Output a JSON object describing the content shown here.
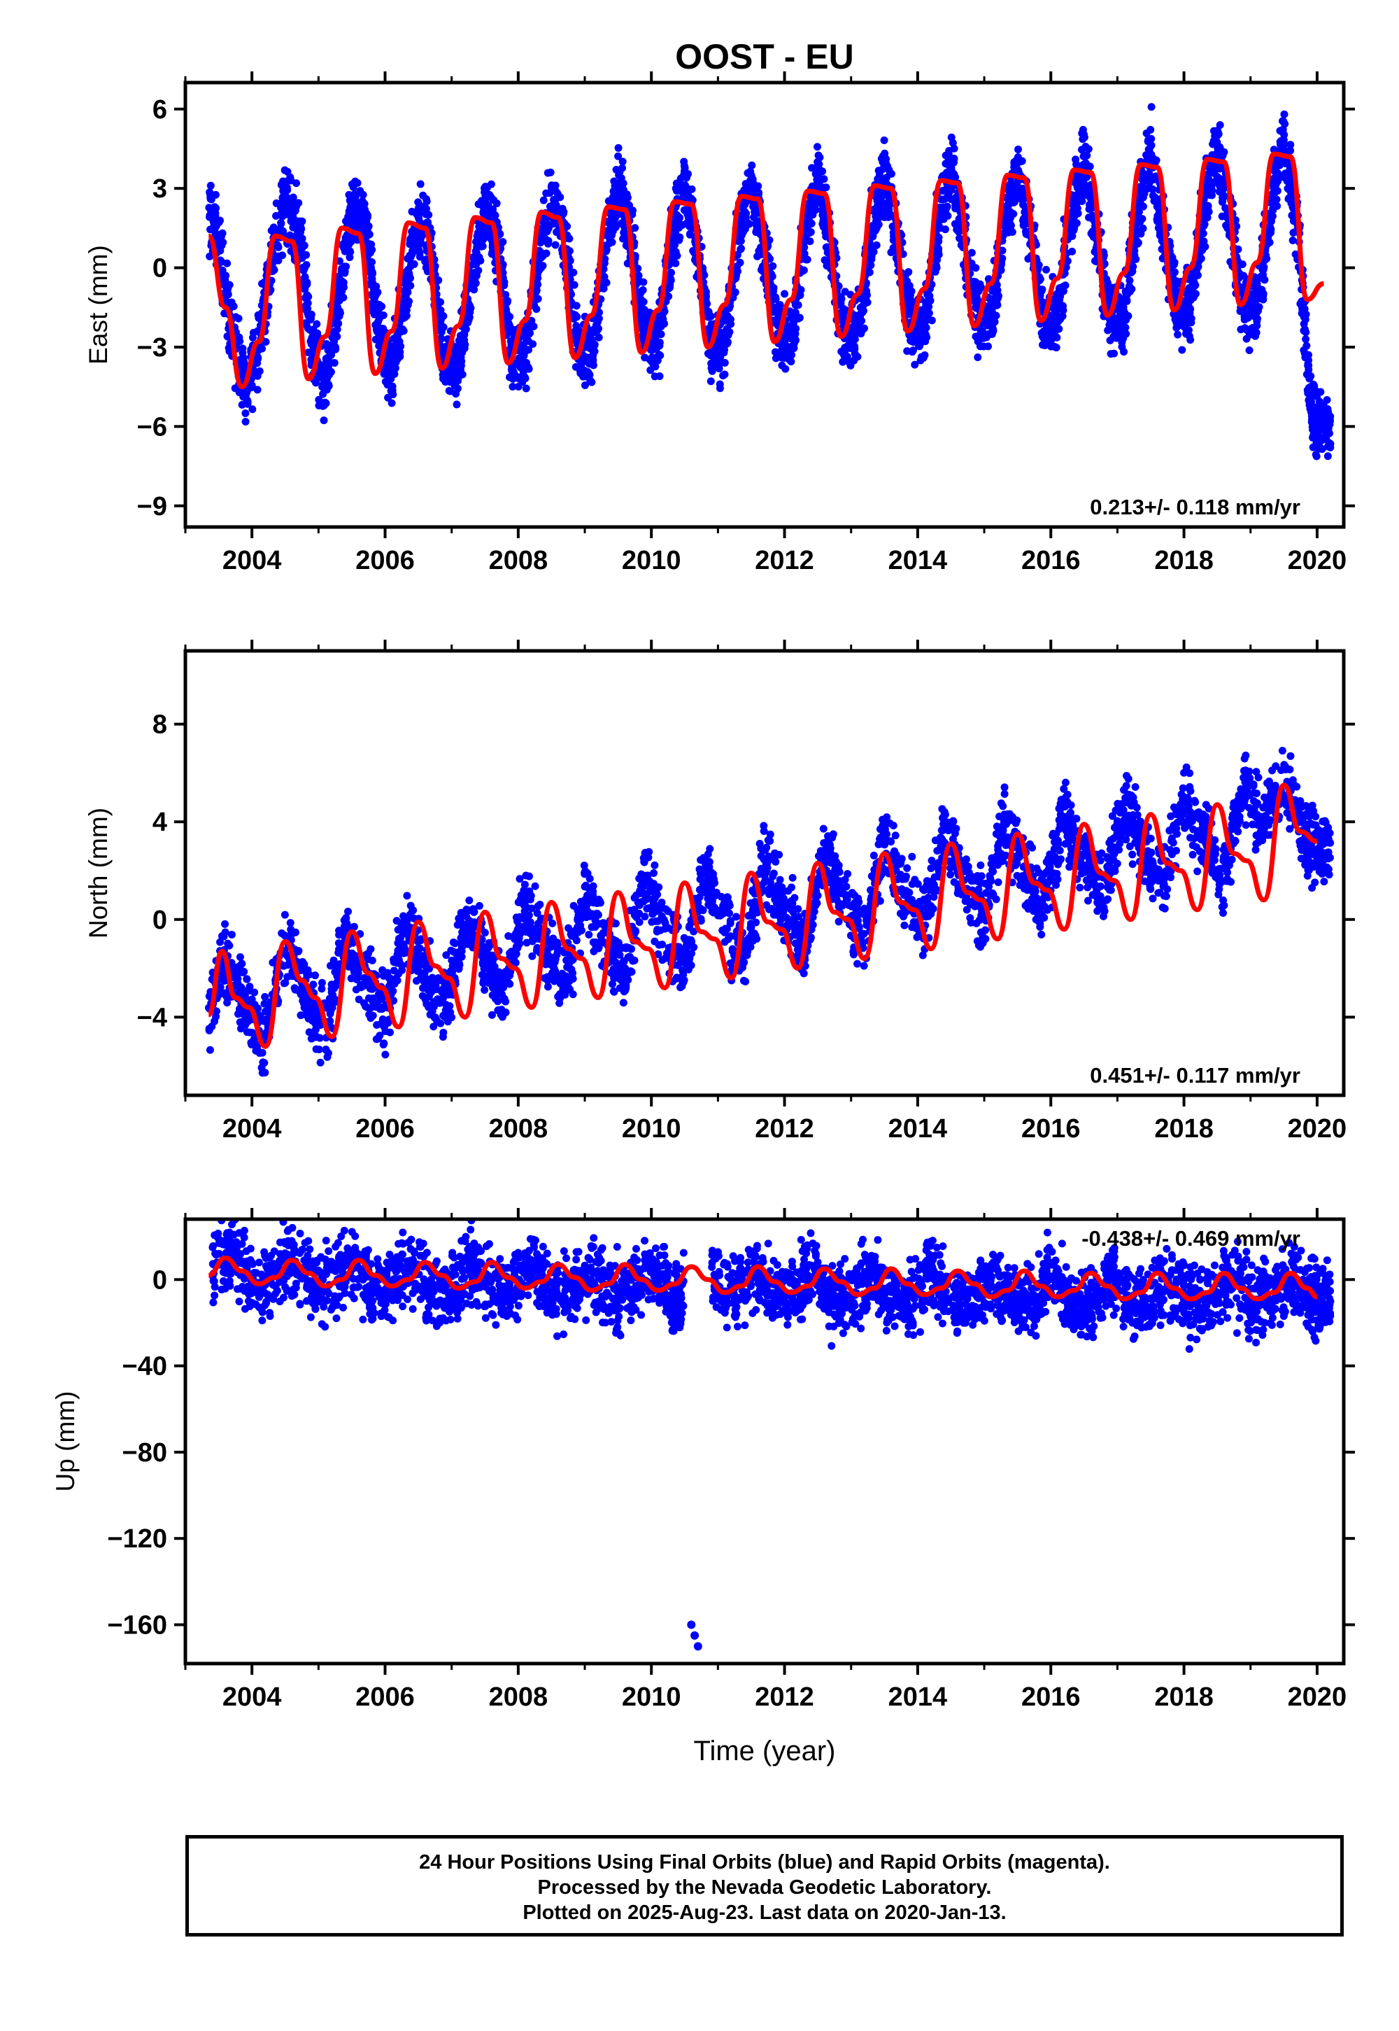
{
  "title": "OOST - EU",
  "xlabel": "Time (year)",
  "colors": {
    "final_orbits": "#0000ff",
    "model": "#ff0000",
    "frame": "#000000"
  },
  "footer": {
    "line1": "24 Hour Positions Using Final Orbits (blue) and Rapid Orbits (magenta).",
    "line2": "Processed by the Nevada Geodetic Laboratory.",
    "line3": "Plotted on 2025-Aug-23. Last data on 2020-Jan-13."
  },
  "chart_data": [
    {
      "type": "scatter",
      "id": "east",
      "ylabel": "East (mm)",
      "xlim": [
        2003.0,
        2020.4
      ],
      "ylim": [
        -9.8,
        7.0
      ],
      "x_ticks": [
        "2004",
        "2006",
        "2008",
        "2010",
        "2012",
        "2014",
        "2016",
        "2018",
        "2020"
      ],
      "y_ticks": [
        "6",
        "3",
        "0",
        "−3",
        "−6",
        "−9"
      ],
      "rate_label": "0.213+/- 0.118 mm/yr",
      "rate_position": "bottom-right",
      "series": [
        {
          "marker": "dots",
          "x": [
            2003.35,
            2003.5,
            2003.7,
            2003.9,
            2004.1,
            2004.3,
            2004.5,
            2004.7,
            2004.9,
            2005.1,
            2005.3,
            2005.5,
            2005.7,
            2005.9,
            2006.1,
            2006.3,
            2006.5,
            2006.7,
            2006.9,
            2007.1,
            2007.3,
            2007.5,
            2007.7,
            2007.9,
            2008.1,
            2008.3,
            2008.5,
            2008.7,
            2008.9,
            2009.1,
            2009.3,
            2009.5,
            2009.7,
            2009.9,
            2010.1,
            2010.3,
            2010.5,
            2010.7,
            2010.9,
            2011.1,
            2011.3,
            2011.5,
            2011.7,
            2011.9,
            2012.1,
            2012.3,
            2012.5,
            2012.7,
            2012.9,
            2013.1,
            2013.3,
            2013.5,
            2013.7,
            2013.9,
            2014.1,
            2014.3,
            2014.5,
            2014.7,
            2014.9,
            2015.1,
            2015.3,
            2015.5,
            2015.7,
            2015.9,
            2016.1,
            2016.3,
            2016.5,
            2016.7,
            2016.9,
            2017.1,
            2017.3,
            2017.5,
            2017.7,
            2017.9,
            2018.1,
            2018.3,
            2018.5,
            2018.7,
            2018.9,
            2019.1,
            2019.3,
            2019.5,
            2019.7,
            2019.9,
            2020.0
          ],
          "y": [
            2.0,
            1.0,
            -2.5,
            -4.5,
            -3.0,
            0.5,
            2.5,
            1.5,
            -3.0,
            -4.5,
            -1.5,
            2.0,
            1.8,
            -2.5,
            -4.0,
            -1.2,
            2.0,
            0.5,
            -3.5,
            -3.8,
            -0.5,
            2.3,
            0.8,
            -3.0,
            -3.5,
            0.0,
            2.8,
            1.0,
            -3.0,
            -3.2,
            0.5,
            3.0,
            1.0,
            -2.5,
            -3.0,
            0.8,
            3.2,
            0.5,
            -3.0,
            -2.8,
            1.0,
            3.2,
            0.6,
            -2.5,
            -2.8,
            0.8,
            3.5,
            0.6,
            -2.6,
            -2.5,
            1.2,
            3.6,
            0.8,
            -2.2,
            -2.3,
            1.4,
            3.8,
            1.0,
            -2.0,
            -2.0,
            1.5,
            3.9,
            1.2,
            -2.0,
            -1.8,
            1.8,
            4.2,
            1.0,
            -1.8,
            -1.8,
            2.0,
            4.5,
            1.3,
            -1.5,
            -1.5,
            2.0,
            4.6,
            1.3,
            -1.4,
            -1.3,
            2.2,
            4.8,
            1.5,
            -5.0,
            -6.0
          ]
        },
        {
          "name": "",
          "line": "model",
          "x": [
            2003.35,
            2003.6,
            2003.85,
            2004.1,
            2004.35,
            2004.6,
            2004.85,
            2005.1,
            2005.35,
            2005.6,
            2005.85,
            2006.1,
            2006.35,
            2006.6,
            2006.85,
            2007.1,
            2007.35,
            2007.6,
            2007.85,
            2008.1,
            2008.35,
            2008.6,
            2008.85,
            2009.1,
            2009.35,
            2009.6,
            2009.85,
            2010.1,
            2010.35,
            2010.6,
            2010.85,
            2011.1,
            2011.35,
            2011.6,
            2011.85,
            2012.1,
            2012.35,
            2012.6,
            2012.85,
            2013.1,
            2013.35,
            2013.6,
            2013.85,
            2014.1,
            2014.35,
            2014.6,
            2014.85,
            2015.1,
            2015.35,
            2015.6,
            2015.85,
            2016.1,
            2016.35,
            2016.6,
            2016.85,
            2017.1,
            2017.35,
            2017.6,
            2017.85,
            2018.1,
            2018.35,
            2018.6,
            2018.85,
            2019.1,
            2019.35,
            2019.6,
            2019.85,
            2020.1
          ],
          "y": [
            1.2,
            -1.5,
            -4.5,
            -2.8,
            1.2,
            1.0,
            -4.2,
            -2.6,
            1.5,
            1.3,
            -4.0,
            -2.4,
            1.7,
            1.5,
            -3.8,
            -2.2,
            1.9,
            1.7,
            -3.6,
            -2.0,
            2.1,
            1.9,
            -3.4,
            -1.8,
            2.3,
            2.2,
            -3.2,
            -1.6,
            2.5,
            2.4,
            -3.0,
            -1.4,
            2.7,
            2.6,
            -2.8,
            -1.2,
            2.9,
            2.8,
            -2.6,
            -1.0,
            3.1,
            3.0,
            -2.4,
            -0.8,
            3.3,
            3.2,
            -2.2,
            -0.6,
            3.5,
            3.4,
            -2.0,
            -0.4,
            3.7,
            3.6,
            -1.8,
            -0.2,
            3.9,
            3.8,
            -1.6,
            0.0,
            4.1,
            4.0,
            -1.4,
            0.2,
            4.3,
            4.2,
            -1.2,
            -0.6
          ]
        }
      ]
    },
    {
      "type": "scatter",
      "id": "north",
      "ylabel": "North (mm)",
      "xlim": [
        2003.0,
        2020.4
      ],
      "ylim": [
        -7.2,
        11.0
      ],
      "x_ticks": [
        "2004",
        "2006",
        "2008",
        "2010",
        "2012",
        "2014",
        "2016",
        "2018",
        "2020"
      ],
      "y_ticks": [
        "8",
        "4",
        "0",
        "−4"
      ],
      "rate_label": "0.451+/- 0.117 mm/yr",
      "rate_position": "bottom-right",
      "series": [
        {
          "marker": "dots",
          "x": [
            2003.35,
            2003.6,
            2003.9,
            2004.2,
            2004.5,
            2004.8,
            2005.1,
            2005.4,
            2005.7,
            2006.0,
            2006.3,
            2006.6,
            2006.9,
            2007.2,
            2007.5,
            2007.8,
            2008.1,
            2008.4,
            2008.7,
            2009.0,
            2009.3,
            2009.6,
            2009.9,
            2010.2,
            2010.5,
            2010.8,
            2011.1,
            2011.4,
            2011.7,
            2012.0,
            2012.3,
            2012.6,
            2012.9,
            2013.2,
            2013.5,
            2013.8,
            2014.1,
            2014.4,
            2014.7,
            2015.0,
            2015.3,
            2015.6,
            2015.9,
            2016.2,
            2016.5,
            2016.8,
            2017.1,
            2017.4,
            2017.7,
            2018.0,
            2018.3,
            2018.6,
            2018.9,
            2019.2,
            2019.5,
            2019.8,
            2020.0
          ],
          "y": [
            -3.8,
            -1.5,
            -3.5,
            -5.0,
            -1.0,
            -2.8,
            -4.5,
            -0.6,
            -2.5,
            -4.0,
            -0.2,
            -2.0,
            -3.6,
            0.3,
            -1.6,
            -3.2,
            0.8,
            -1.2,
            -2.8,
            1.2,
            -0.8,
            -2.4,
            1.6,
            -0.4,
            -2.0,
            2.0,
            0.0,
            -1.5,
            2.4,
            0.4,
            -1.0,
            2.8,
            0.8,
            -0.6,
            3.2,
            1.2,
            -0.2,
            3.6,
            1.6,
            0.2,
            4.0,
            2.0,
            0.6,
            4.4,
            2.4,
            1.0,
            4.8,
            2.8,
            1.4,
            5.2,
            3.2,
            1.8,
            5.6,
            3.6,
            6.0,
            3.4,
            3.0
          ]
        },
        {
          "name": "",
          "line": "model",
          "x": [
            2003.35,
            2003.55,
            2003.75,
            2003.95,
            2004.2,
            2004.5,
            2004.75,
            2004.95,
            2005.2,
            2005.5,
            2005.75,
            2005.95,
            2006.2,
            2006.5,
            2006.75,
            2006.95,
            2007.2,
            2007.5,
            2007.75,
            2007.95,
            2008.2,
            2008.5,
            2008.75,
            2008.95,
            2009.2,
            2009.5,
            2009.75,
            2009.95,
            2010.2,
            2010.5,
            2010.75,
            2010.95,
            2011.2,
            2011.5,
            2011.75,
            2011.95,
            2012.2,
            2012.5,
            2012.75,
            2012.95,
            2013.2,
            2013.5,
            2013.75,
            2013.95,
            2014.2,
            2014.5,
            2014.75,
            2014.95,
            2015.2,
            2015.5,
            2015.75,
            2015.95,
            2016.2,
            2016.5,
            2016.75,
            2016.95,
            2017.2,
            2017.5,
            2017.75,
            2017.95,
            2018.2,
            2018.5,
            2018.75,
            2018.95,
            2019.2,
            2019.5,
            2019.75,
            2020.0
          ],
          "y": [
            -3.9,
            -1.3,
            -3.2,
            -3.6,
            -5.2,
            -0.9,
            -2.5,
            -3.2,
            -4.8,
            -0.5,
            -2.2,
            -2.8,
            -4.4,
            -0.1,
            -1.9,
            -2.4,
            -4.0,
            0.3,
            -1.6,
            -2.0,
            -3.6,
            0.7,
            -1.2,
            -1.6,
            -3.2,
            1.1,
            -0.9,
            -1.2,
            -2.8,
            1.5,
            -0.5,
            -0.8,
            -2.4,
            1.9,
            -0.1,
            -0.4,
            -2.0,
            2.3,
            0.3,
            0.0,
            -1.6,
            2.7,
            0.7,
            0.4,
            -1.2,
            3.1,
            1.1,
            0.8,
            -0.8,
            3.5,
            1.5,
            1.2,
            -0.4,
            3.9,
            1.9,
            1.6,
            0.0,
            4.3,
            2.3,
            2.0,
            0.4,
            4.7,
            2.7,
            2.4,
            0.8,
            5.5,
            3.6,
            3.2
          ]
        }
      ]
    },
    {
      "type": "scatter",
      "id": "up",
      "ylabel": "Up (mm)",
      "xlim": [
        2003.0,
        2020.4
      ],
      "ylim": [
        -178,
        28
      ],
      "x_ticks": [
        "2004",
        "2006",
        "2008",
        "2010",
        "2012",
        "2014",
        "2016",
        "2018",
        "2020"
      ],
      "y_ticks": [
        "0",
        "−40",
        "−80",
        "−120",
        "−160"
      ],
      "rate_label": "-0.438+/- 0.469 mm/yr",
      "rate_position": "top-right",
      "series": [
        {
          "marker": "dots",
          "x": [
            2003.4,
            2003.7,
            2004.0,
            2004.3,
            2004.6,
            2004.9,
            2005.2,
            2005.5,
            2005.8,
            2006.1,
            2006.4,
            2006.7,
            2007.0,
            2007.3,
            2007.6,
            2007.9,
            2008.2,
            2008.5,
            2008.8,
            2009.1,
            2009.4,
            2009.7,
            2010.0,
            2010.3,
            2010.6,
            2010.65,
            2010.7,
            2010.9,
            2011.2,
            2011.5,
            2011.8,
            2012.1,
            2012.4,
            2012.7,
            2013.0,
            2013.3,
            2013.6,
            2013.9,
            2014.2,
            2014.5,
            2014.8,
            2015.1,
            2015.4,
            2015.7,
            2016.0,
            2016.3,
            2016.6,
            2016.9,
            2017.2,
            2017.5,
            2017.8,
            2018.1,
            2018.4,
            2018.7,
            2019.0,
            2019.3,
            2019.6,
            2019.9,
            2020.0
          ],
          "y": [
            4,
            12,
            -2,
            0,
            10,
            -3,
            -2,
            9,
            -4,
            -3,
            8,
            -5,
            -4,
            8,
            -5,
            -5,
            7,
            -6,
            -6,
            6,
            -7,
            -7,
            6,
            -8,
            -160,
            -165,
            -170,
            5,
            -8,
            5,
            -8,
            -8,
            5,
            -9,
            -9,
            4,
            -9,
            -10,
            4,
            -10,
            -10,
            3,
            -11,
            -11,
            3,
            -12,
            -12,
            2,
            -12,
            -12,
            2,
            -12,
            -10,
            2,
            -10,
            -8,
            1,
            -8,
            -8
          ]
        },
        {
          "name": "",
          "line": "model",
          "x": [
            2003.35,
            2003.6,
            2003.85,
            2004.1,
            2004.35,
            2004.6,
            2004.85,
            2005.1,
            2005.35,
            2005.6,
            2005.85,
            2006.1,
            2006.35,
            2006.6,
            2006.85,
            2007.1,
            2007.35,
            2007.6,
            2007.85,
            2008.1,
            2008.35,
            2008.6,
            2008.85,
            2009.1,
            2009.35,
            2009.6,
            2009.85,
            2010.1,
            2010.35,
            2010.6,
            2010.85,
            2011.1,
            2011.35,
            2011.6,
            2011.85,
            2012.1,
            2012.35,
            2012.6,
            2012.85,
            2013.1,
            2013.35,
            2013.6,
            2013.85,
            2014.1,
            2014.35,
            2014.6,
            2014.85,
            2015.1,
            2015.35,
            2015.6,
            2015.85,
            2016.1,
            2016.35,
            2016.6,
            2016.85,
            2017.1,
            2017.35,
            2017.6,
            2017.85,
            2018.1,
            2018.35,
            2018.6,
            2018.85,
            2019.1,
            2019.35,
            2019.6,
            2019.85,
            2020.0
          ],
          "y": [
            2,
            10,
            4,
            -2,
            1,
            9,
            3,
            -3,
            0,
            9,
            2,
            -3,
            0,
            8,
            2,
            -4,
            -1,
            8,
            1,
            -4,
            -1,
            7,
            1,
            -5,
            -2,
            7,
            0,
            -5,
            -2,
            6,
            0,
            -6,
            -3,
            6,
            -1,
            -6,
            -3,
            5,
            -1,
            -7,
            -4,
            5,
            -2,
            -7,
            -4,
            4,
            -2,
            -8,
            -5,
            4,
            -3,
            -8,
            -5,
            3,
            -3,
            -9,
            -6,
            3,
            -4,
            -9,
            -6,
            3,
            -4,
            -9,
            -6,
            3,
            -4,
            -8
          ]
        }
      ]
    }
  ]
}
